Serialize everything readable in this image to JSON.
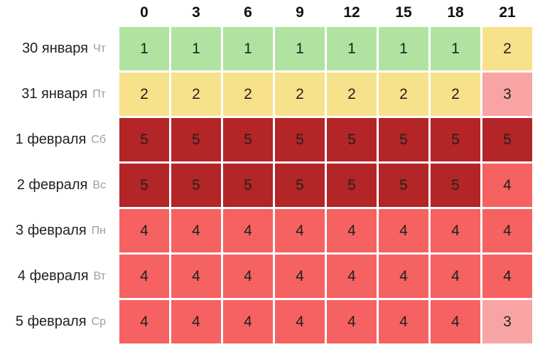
{
  "chart_data": {
    "type": "heatmap",
    "xlabel_hours": [
      "0",
      "3",
      "6",
      "9",
      "12",
      "15",
      "18",
      "21"
    ],
    "rows": [
      {
        "date": "30 января",
        "weekday": "Чт",
        "values": [
          1,
          1,
          1,
          1,
          1,
          1,
          1,
          2
        ]
      },
      {
        "date": "31 января",
        "weekday": "Пт",
        "values": [
          2,
          2,
          2,
          2,
          2,
          2,
          2,
          3
        ]
      },
      {
        "date": "1 февраля",
        "weekday": "Сб",
        "values": [
          5,
          5,
          5,
          5,
          5,
          5,
          5,
          5
        ]
      },
      {
        "date": "2 февраля",
        "weekday": "Вс",
        "values": [
          5,
          5,
          5,
          5,
          5,
          5,
          5,
          4
        ]
      },
      {
        "date": "3 февраля",
        "weekday": "Пн",
        "values": [
          4,
          4,
          4,
          4,
          4,
          4,
          4,
          4
        ]
      },
      {
        "date": "4 февраля",
        "weekday": "Вт",
        "values": [
          4,
          4,
          4,
          4,
          4,
          4,
          4,
          4
        ]
      },
      {
        "date": "5 февраля",
        "weekday": "Ср",
        "values": [
          4,
          4,
          4,
          4,
          4,
          4,
          4,
          3
        ]
      }
    ],
    "value_colors": {
      "1": "#b1e3a0",
      "2": "#f8e18b",
      "3": "#f9a4a4",
      "4": "#f56261",
      "5": "#b32527"
    },
    "cell_text_color": "#212121",
    "grid_gap_color": "#ffffff",
    "legend_position": "none",
    "grid": true
  }
}
